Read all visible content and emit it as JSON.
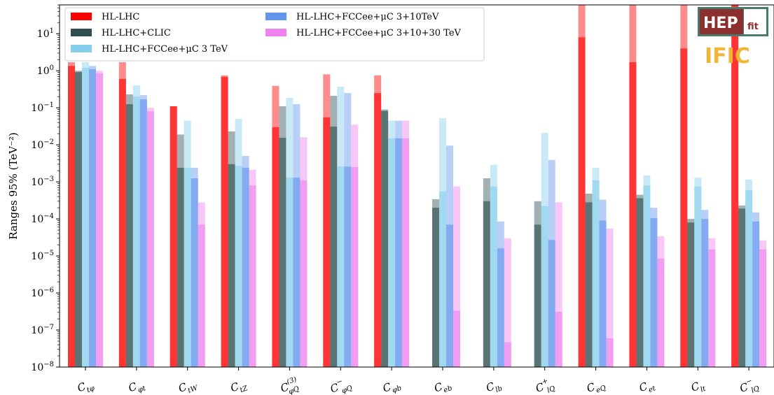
{
  "chart_data": {
    "type": "bar",
    "ylabel": "Ranges 95% (TeV⁻²)",
    "yscale": "log",
    "ylim": [
      1e-08,
      60
    ],
    "yticks": [
      {
        "value": 1e-08,
        "base": "10",
        "exp": "−8"
      },
      {
        "value": 1e-07,
        "base": "10",
        "exp": "−7"
      },
      {
        "value": 1e-06,
        "base": "10",
        "exp": "−6"
      },
      {
        "value": 1e-05,
        "base": "10",
        "exp": "−5"
      },
      {
        "value": 0.0001,
        "base": "10",
        "exp": "−4"
      },
      {
        "value": 0.001,
        "base": "10",
        "exp": "−3"
      },
      {
        "value": 0.01,
        "base": "10",
        "exp": "−2"
      },
      {
        "value": 0.1,
        "base": "10",
        "exp": "−1"
      },
      {
        "value": 1,
        "base": "10",
        "exp": "0"
      },
      {
        "value": 10,
        "base": "10",
        "exp": "1"
      }
    ],
    "categories": [
      {
        "main": "C",
        "sub": "tφ",
        "sup": ""
      },
      {
        "main": "C",
        "sub": "φt",
        "sup": ""
      },
      {
        "main": "C",
        "sub": "tW",
        "sup": ""
      },
      {
        "main": "C",
        "sub": "tZ",
        "sup": ""
      },
      {
        "main": "C",
        "sub": "φQ",
        "sup": "(3)"
      },
      {
        "main": "C",
        "sub": "φQ",
        "sup": "−"
      },
      {
        "main": "C",
        "sub": "φb",
        "sup": ""
      },
      {
        "main": "C",
        "sub": "eb",
        "sup": ""
      },
      {
        "main": "C",
        "sub": "lb",
        "sup": ""
      },
      {
        "main": "C",
        "sub": "lQ",
        "sup": "+"
      },
      {
        "main": "C",
        "sub": "eQ",
        "sup": ""
      },
      {
        "main": "C",
        "sub": "et",
        "sup": ""
      },
      {
        "main": "C",
        "sub": "lt",
        "sup": ""
      },
      {
        "main": "C",
        "sub": "lQ",
        "sup": "−"
      }
    ],
    "series": [
      {
        "name": "HL-LHC",
        "color": "#ff0000",
        "solid": [
          1.35,
          0.6,
          0.11,
          0.68,
          0.03,
          0.055,
          0.25,
          null,
          null,
          null,
          8.0,
          1.7,
          4.0,
          60
        ],
        "light": [
          1.7,
          1.7,
          0.11,
          0.75,
          0.39,
          0.8,
          0.75,
          null,
          null,
          null,
          60,
          60,
          60,
          60
        ]
      },
      {
        "name": "HL-LHC+CLIC",
        "color": "#2f4f4f",
        "solid": [
          0.92,
          0.125,
          0.0024,
          0.003,
          0.0155,
          0.031,
          0.082,
          0.0002,
          0.0003,
          7e-05,
          0.00028,
          0.00036,
          8e-05,
          0.00019
        ],
        "light": [
          1.0,
          0.23,
          0.019,
          0.023,
          0.11,
          0.21,
          0.09,
          0.00034,
          0.00125,
          0.0003,
          0.00048,
          0.00045,
          0.0001,
          0.00023
        ]
      },
      {
        "name": "HL-LHC+FCCee+μC 3 TeV",
        "color": "#87ceeb",
        "solid": [
          1.2,
          0.2,
          0.0024,
          0.0027,
          0.0013,
          0.0026,
          0.015,
          0.00055,
          0.00075,
          0.00022,
          0.0011,
          0.0008,
          0.00075,
          0.0006
        ],
        "light": [
          1.7,
          0.4,
          0.045,
          0.05,
          0.185,
          0.37,
          0.045,
          0.052,
          0.0029,
          0.021,
          0.0024,
          0.0015,
          0.0013,
          0.00115
        ]
      },
      {
        "name": "HL-LHC+FCCee+μC 3+10TeV",
        "color": "#6495ed",
        "solid": [
          1.1,
          0.17,
          0.00125,
          0.0024,
          0.0013,
          0.0026,
          0.015,
          7e-05,
          1.6e-05,
          2.7e-05,
          9e-05,
          0.000105,
          0.0001,
          8.5e-05
        ],
        "light": [
          1.35,
          0.22,
          0.0024,
          0.005,
          0.125,
          0.25,
          0.045,
          0.0095,
          8.5e-05,
          0.0039,
          0.00033,
          0.0002,
          0.000175,
          0.00015
        ]
      },
      {
        "name": "HL-LHC+FCCee+μC 3+10+30 TeV",
        "color": "#ee82ee",
        "solid": [
          0.85,
          0.08,
          7e-05,
          0.0008,
          0.0011,
          0.0025,
          0.015,
          3.3e-07,
          4.7e-08,
          3.1e-07,
          6e-08,
          8.5e-06,
          1.5e-05,
          1.5e-05
        ],
        "light": [
          1.0,
          0.1,
          0.00028,
          0.0021,
          0.016,
          0.035,
          0.045,
          0.00075,
          3e-05,
          0.00028,
          5.5e-05,
          3.4e-05,
          3e-05,
          2.6e-05
        ]
      }
    ]
  },
  "logo": {
    "hep": "HEP",
    "fit": "fit",
    "ific": "IFIC"
  }
}
